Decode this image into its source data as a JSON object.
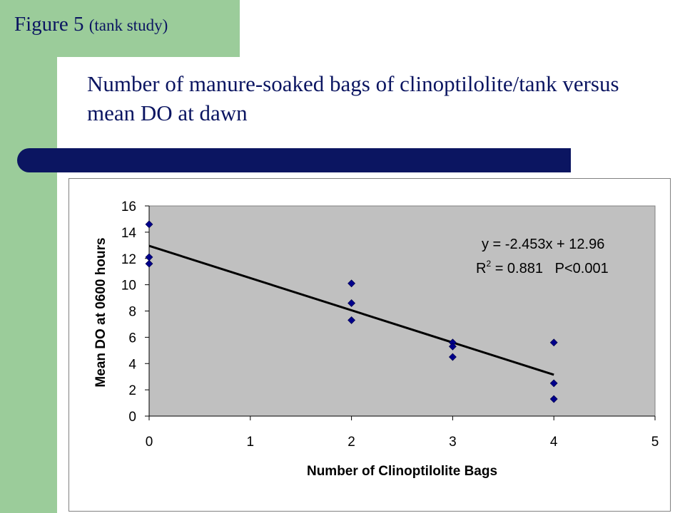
{
  "slide": {
    "figure_label": "Figure 5",
    "figure_sub": "(tank study)",
    "title": "Number of manure-soaked bags of clinoptilolite/tank versus mean DO at dawn"
  },
  "colors": {
    "sidebar": "#9bcc9a",
    "title": "#0b1561",
    "bar": "#0b1561",
    "plot_bg": "#c0c0c0",
    "marker": "#00008b"
  },
  "chart_data": {
    "type": "scatter",
    "title": "",
    "xlabel": "Number of Clinoptilolite Bags",
    "ylabel": "Mean DO at 0600 hours",
    "xlim": [
      0,
      5
    ],
    "ylim": [
      0,
      16
    ],
    "x_ticks": [
      "0",
      "1",
      "2",
      "3",
      "4",
      "5"
    ],
    "y_ticks": [
      "0",
      "2",
      "4",
      "6",
      "8",
      "10",
      "12",
      "14",
      "16"
    ],
    "grid": false,
    "points": [
      {
        "x": 0,
        "y": 14.6
      },
      {
        "x": 0,
        "y": 12.1
      },
      {
        "x": 0,
        "y": 11.6
      },
      {
        "x": 2,
        "y": 10.1
      },
      {
        "x": 2,
        "y": 8.6
      },
      {
        "x": 2,
        "y": 7.3
      },
      {
        "x": 3,
        "y": 5.6
      },
      {
        "x": 3,
        "y": 5.3
      },
      {
        "x": 3,
        "y": 4.5
      },
      {
        "x": 4,
        "y": 5.6
      },
      {
        "x": 4,
        "y": 2.5
      },
      {
        "x": 4,
        "y": 1.3
      }
    ],
    "trendline": {
      "slope": -2.453,
      "intercept": 12.96,
      "x_range": [
        0,
        4
      ]
    },
    "annotations": {
      "equation": "y = -2.453x + 12.96",
      "r2_prefix": "R",
      "r2_sup": "2",
      "r2_rest": " = 0.881   P<0.001"
    }
  }
}
